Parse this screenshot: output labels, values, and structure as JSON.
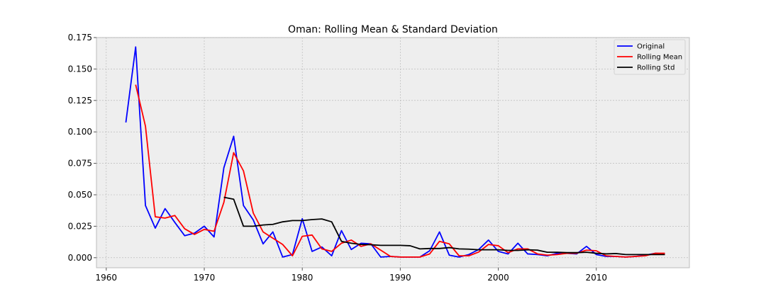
{
  "chart_data": {
    "type": "line",
    "title": "Oman: Rolling Mean & Standard Deviation",
    "xlabel": "",
    "ylabel": "",
    "xlim": [
      1959,
      2019.5
    ],
    "ylim": [
      -0.008,
      0.175
    ],
    "x_ticks": [
      1960,
      1970,
      1980,
      1990,
      2000,
      2010
    ],
    "x_tick_labels": [
      "1960",
      "1970",
      "1980",
      "1990",
      "2000",
      "2010"
    ],
    "y_ticks": [
      0,
      0.025,
      0.05,
      0.075,
      0.1,
      0.125,
      0.15,
      0.175
    ],
    "y_tick_labels": [
      "0.000",
      "0.025",
      "0.050",
      "0.075",
      "0.100",
      "0.125",
      "0.150",
      "0.175"
    ],
    "grid": true,
    "legend_position": "top-right",
    "series": [
      {
        "name": "Original",
        "color": "#0000ff",
        "points": [
          [
            1962,
            0.1075
          ],
          [
            1963,
            0.1675
          ],
          [
            1964,
            0.0415
          ],
          [
            1965,
            0.0235
          ],
          [
            1966,
            0.039
          ],
          [
            1967,
            0.028
          ],
          [
            1968,
            0.0175
          ],
          [
            1969,
            0.0195
          ],
          [
            1970,
            0.025
          ],
          [
            1971,
            0.0165
          ],
          [
            1972,
            0.0715
          ],
          [
            1973,
            0.0965
          ],
          [
            1974,
            0.0415
          ],
          [
            1975,
            0.03
          ],
          [
            1976,
            0.011
          ],
          [
            1977,
            0.0205
          ],
          [
            1978,
            0.0005
          ],
          [
            1979,
            0.0025
          ],
          [
            1980,
            0.031
          ],
          [
            1981,
            0.005
          ],
          [
            1982,
            0.0085
          ],
          [
            1983,
            0.0015
          ],
          [
            1984,
            0.0215
          ],
          [
            1985,
            0.0065
          ],
          [
            1986,
            0.0115
          ],
          [
            1987,
            0.011
          ],
          [
            1988,
            0.0005
          ],
          [
            1989,
            0.001
          ],
          [
            1990,
            0.0005
          ],
          [
            1991,
            0.0005
          ],
          [
            1992,
            0.0005
          ],
          [
            1993,
            0.0055
          ],
          [
            1994,
            0.0205
          ],
          [
            1995,
            0.002
          ],
          [
            1996,
            0.0005
          ],
          [
            1997,
            0.0025
          ],
          [
            1998,
            0.0065
          ],
          [
            1999,
            0.014
          ],
          [
            2000,
            0.005
          ],
          [
            2001,
            0.003
          ],
          [
            2002,
            0.0115
          ],
          [
            2003,
            0.003
          ],
          [
            2004,
            0.0025
          ],
          [
            2005,
            0.0015
          ],
          [
            2006,
            0.0035
          ],
          [
            2007,
            0.0035
          ],
          [
            2008,
            0.003
          ],
          [
            2009,
            0.009
          ],
          [
            2010,
            0.0025
          ],
          [
            2011,
            0.001
          ],
          [
            2012,
            0.001
          ],
          [
            2013,
            0.0005
          ],
          [
            2014,
            0.001
          ],
          [
            2015,
            0.002
          ],
          [
            2016,
            0.0035
          ],
          [
            2017,
            0.003
          ]
        ]
      },
      {
        "name": "Rolling Mean",
        "color": "#ff0000",
        "points": [
          [
            1963,
            0.1375
          ],
          [
            1964,
            0.1045
          ],
          [
            1965,
            0.0325
          ],
          [
            1966,
            0.0315
          ],
          [
            1967,
            0.0335
          ],
          [
            1968,
            0.023
          ],
          [
            1969,
            0.0185
          ],
          [
            1970,
            0.0225
          ],
          [
            1971,
            0.021
          ],
          [
            1972,
            0.044
          ],
          [
            1973,
            0.0835
          ],
          [
            1974,
            0.069
          ],
          [
            1975,
            0.0355
          ],
          [
            1976,
            0.0205
          ],
          [
            1977,
            0.0155
          ],
          [
            1978,
            0.0105
          ],
          [
            1979,
            0.0015
          ],
          [
            1980,
            0.017
          ],
          [
            1981,
            0.018
          ],
          [
            1982,
            0.007
          ],
          [
            1983,
            0.005
          ],
          [
            1984,
            0.0115
          ],
          [
            1985,
            0.014
          ],
          [
            1986,
            0.009
          ],
          [
            1987,
            0.011
          ],
          [
            1988,
            0.006
          ],
          [
            1989,
            0.001
          ],
          [
            1990,
            0.0005
          ],
          [
            1991,
            0.0005
          ],
          [
            1992,
            0.0005
          ],
          [
            1993,
            0.003
          ],
          [
            1994,
            0.013
          ],
          [
            1995,
            0.011
          ],
          [
            1996,
            0.0015
          ],
          [
            1997,
            0.0015
          ],
          [
            1998,
            0.0045
          ],
          [
            1999,
            0.0105
          ],
          [
            2000,
            0.0095
          ],
          [
            2001,
            0.004
          ],
          [
            2002,
            0.007
          ],
          [
            2003,
            0.007
          ],
          [
            2004,
            0.003
          ],
          [
            2005,
            0.002
          ],
          [
            2006,
            0.0025
          ],
          [
            2007,
            0.0035
          ],
          [
            2008,
            0.0035
          ],
          [
            2009,
            0.006
          ],
          [
            2010,
            0.0055
          ],
          [
            2011,
            0.0015
          ],
          [
            2012,
            0.001
          ],
          [
            2013,
            0.0005
          ],
          [
            2014,
            0.001
          ],
          [
            2015,
            0.0015
          ],
          [
            2016,
            0.0035
          ],
          [
            2017,
            0.0035
          ]
        ]
      },
      {
        "name": "Rolling Std",
        "color": "#000000",
        "points": [
          [
            1972,
            0.048
          ],
          [
            1973,
            0.0465
          ],
          [
            1974,
            0.025
          ],
          [
            1975,
            0.025
          ],
          [
            1976,
            0.026
          ],
          [
            1977,
            0.0265
          ],
          [
            1978,
            0.0285
          ],
          [
            1979,
            0.0295
          ],
          [
            1980,
            0.0295
          ],
          [
            1981,
            0.0303
          ],
          [
            1982,
            0.0308
          ],
          [
            1983,
            0.0285
          ],
          [
            1984,
            0.013
          ],
          [
            1985,
            0.0115
          ],
          [
            1986,
            0.0105
          ],
          [
            1987,
            0.0103
          ],
          [
            1988,
            0.0098
          ],
          [
            1989,
            0.0098
          ],
          [
            1990,
            0.0098
          ],
          [
            1991,
            0.0095
          ],
          [
            1992,
            0.007
          ],
          [
            1993,
            0.0073
          ],
          [
            1994,
            0.0073
          ],
          [
            1995,
            0.008
          ],
          [
            1996,
            0.007
          ],
          [
            1997,
            0.0068
          ],
          [
            1998,
            0.0063
          ],
          [
            1999,
            0.0063
          ],
          [
            2000,
            0.0063
          ],
          [
            2001,
            0.0058
          ],
          [
            2002,
            0.0058
          ],
          [
            2003,
            0.0063
          ],
          [
            2004,
            0.006
          ],
          [
            2005,
            0.0043
          ],
          [
            2006,
            0.0043
          ],
          [
            2007,
            0.004
          ],
          [
            2008,
            0.004
          ],
          [
            2009,
            0.0043
          ],
          [
            2010,
            0.0035
          ],
          [
            2011,
            0.003
          ],
          [
            2012,
            0.0033
          ],
          [
            2013,
            0.0025
          ],
          [
            2014,
            0.0025
          ],
          [
            2015,
            0.0025
          ],
          [
            2016,
            0.0025
          ],
          [
            2017,
            0.0025
          ]
        ]
      }
    ]
  }
}
